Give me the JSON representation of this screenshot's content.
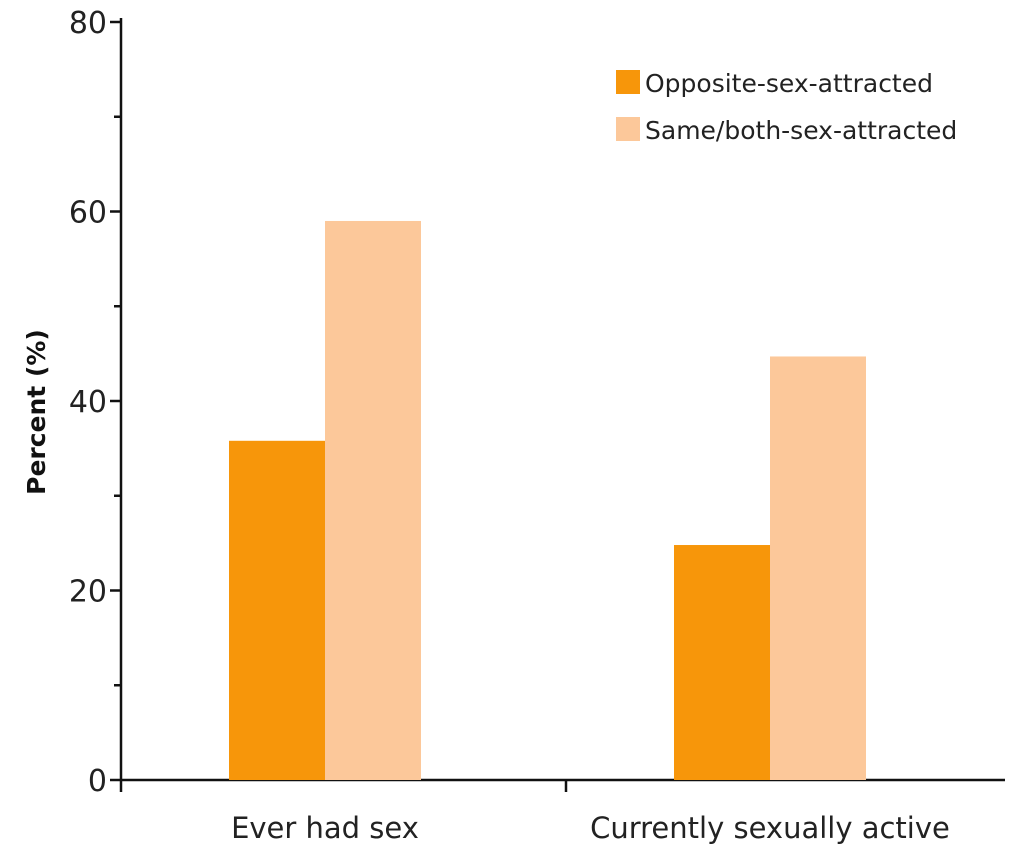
{
  "chart_data": {
    "type": "bar",
    "categories": [
      "Ever had sex",
      "Currently sexually active"
    ],
    "series": [
      {
        "name": "Opposite-sex-attracted",
        "values": [
          35.8,
          24.8
        ],
        "color": "#f7960a"
      },
      {
        "name": "Same/both-sex-attracted",
        "values": [
          59.0,
          44.7
        ],
        "color": "#fcc89a"
      }
    ],
    "title": "",
    "xlabel": "",
    "ylabel": "Percent (%)",
    "ylim": [
      0,
      80
    ],
    "yticks": [
      0,
      20,
      40,
      60,
      80
    ],
    "y_minor_step": 10,
    "grid": false,
    "legend_position": "top-right"
  }
}
